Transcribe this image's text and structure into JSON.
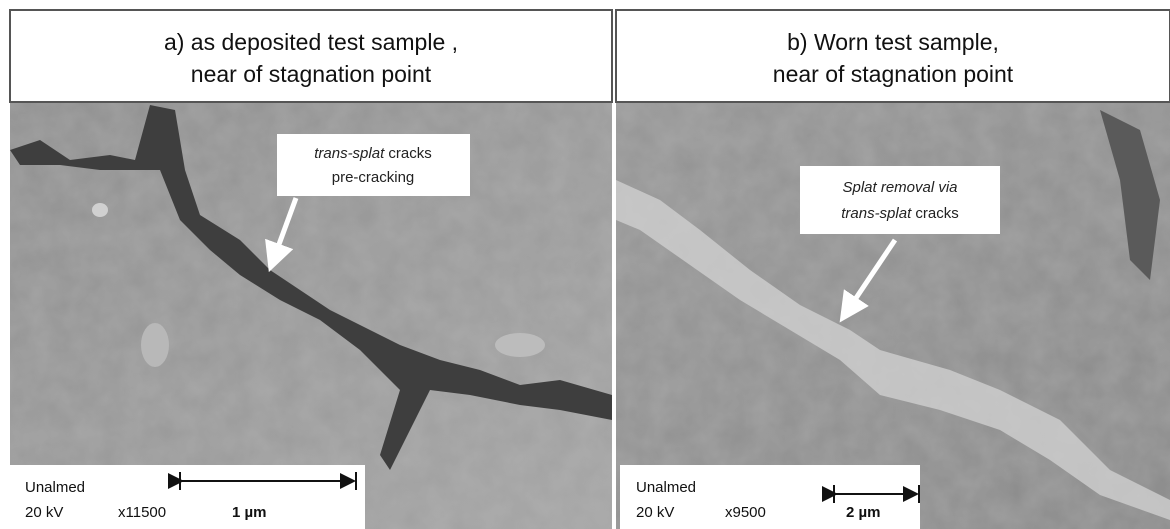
{
  "panels": [
    {
      "title_lines": [
        "a) as deposited test sample ,",
        "near of stagnation point"
      ],
      "annotation": {
        "line1_italic": "trans-splat",
        "line1_rest": "cracks",
        "line2": "pre-cracking"
      },
      "footer": {
        "source": "Unalmed",
        "voltage": "20 kV",
        "magnification": "x11500",
        "scale": "1 µm"
      }
    },
    {
      "title_lines": [
        "b) Worn test sample,",
        "near of stagnation point"
      ],
      "annotation": {
        "line1_italic": "Splat removal via",
        "line2_italic": "trans-splat",
        "line2_rest": "cracks"
      },
      "footer": {
        "source": "Unalmed",
        "voltage": "20 kV",
        "magnification": "x9500",
        "scale": "2 µm"
      }
    }
  ]
}
